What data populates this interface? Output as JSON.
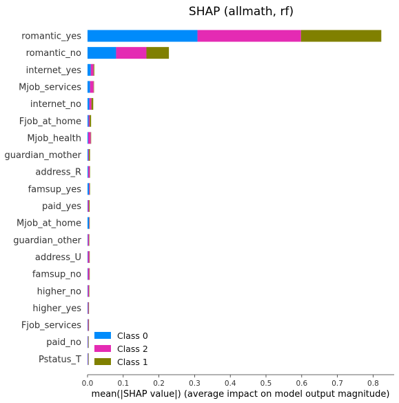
{
  "chart_data": {
    "type": "bar",
    "orientation": "horizontal",
    "stacked": true,
    "title": "SHAP (allmath, rf)",
    "xlabel": "mean(|SHAP value|) (average impact on model output magnitude)",
    "ylabel": "",
    "xlim": [
      0,
      0.86
    ],
    "xticks": [
      "0.0",
      "0.1",
      "0.2",
      "0.3",
      "0.4",
      "0.5",
      "0.6",
      "0.7",
      "0.8"
    ],
    "grid": false,
    "legend_position": "lower-left",
    "categories": [
      "romantic_yes",
      "romantic_no",
      "internet_yes",
      "Mjob_services",
      "internet_no",
      "Fjob_at_home",
      "Mjob_health",
      "guardian_mother",
      "address_R",
      "famsup_yes",
      "paid_yes",
      "Mjob_at_home",
      "guardian_other",
      "address_U",
      "famsup_no",
      "higher_no",
      "higher_yes",
      "Fjob_services",
      "paid_no",
      "Pstatus_T"
    ],
    "series": [
      {
        "name": "Class 0",
        "color": "#008bfb",
        "values": [
          0.308,
          0.08,
          0.009,
          0.007,
          0.005,
          0.003,
          0.002,
          0.002,
          0.002,
          0.004,
          0.001,
          0.004,
          0.001,
          0.001,
          0.001,
          0.001,
          0.001,
          0.001,
          0.001,
          0.001
        ]
      },
      {
        "name": "Class 2",
        "color": "#e42bb3",
        "values": [
          0.29,
          0.085,
          0.008,
          0.01,
          0.006,
          0.003,
          0.007,
          0.002,
          0.004,
          0.002,
          0.003,
          0.001,
          0.003,
          0.004,
          0.004,
          0.003,
          0.002,
          0.002,
          0.001,
          0.001
        ]
      },
      {
        "name": "Class 1",
        "color": "#808000",
        "values": [
          0.225,
          0.063,
          0.002,
          0.001,
          0.005,
          0.004,
          0.001,
          0.003,
          0.001,
          0.001,
          0.002,
          0.001,
          0.001,
          0.001,
          0.001,
          0.001,
          0.001,
          0.001,
          0.001,
          0.001
        ]
      }
    ],
    "legend": [
      "Class 0",
      "Class 2",
      "Class 1"
    ]
  }
}
